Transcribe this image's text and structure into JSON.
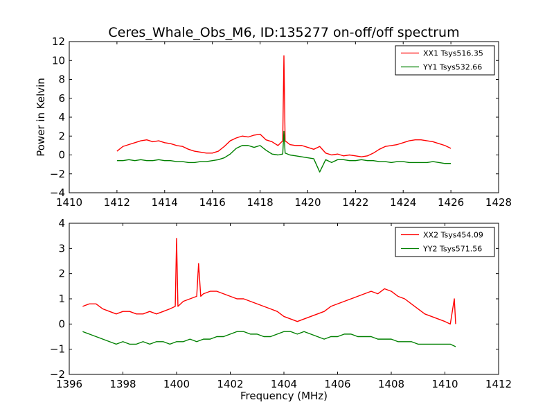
{
  "figure": {
    "title": "Ceres_Whale_Obs_M6, ID:135277 on-off/off spectrum",
    "xlabel": "Frequency (MHz)"
  },
  "chart_data": [
    {
      "type": "line",
      "title": "Ceres_Whale_Obs_M6, ID:135277 on-off/off spectrum",
      "xlabel": "",
      "ylabel": "Power in Kelvin",
      "xlim": [
        1410,
        1428
      ],
      "ylim": [
        -4,
        12
      ],
      "xticks": [
        "1410",
        "1412",
        "1414",
        "1416",
        "1418",
        "1420",
        "1422",
        "1424",
        "1426",
        "1428"
      ],
      "yticks": [
        "−4",
        "−2",
        "0",
        "2",
        "4",
        "6",
        "8",
        "10",
        "12"
      ],
      "legend_position": "top-right",
      "grid": false,
      "series": [
        {
          "name": "XX1 Tsys516.35",
          "color": "#ff0000",
          "x": [
            1412.0,
            1412.25,
            1412.5,
            1412.75,
            1413.0,
            1413.25,
            1413.5,
            1413.75,
            1414.0,
            1414.25,
            1414.5,
            1414.75,
            1415.0,
            1415.25,
            1415.5,
            1415.75,
            1416.0,
            1416.25,
            1416.5,
            1416.75,
            1417.0,
            1417.25,
            1417.5,
            1417.75,
            1418.0,
            1418.25,
            1418.5,
            1418.75,
            1418.95,
            1419.0,
            1419.05,
            1419.25,
            1419.5,
            1419.75,
            1420.0,
            1420.25,
            1420.5,
            1420.75,
            1421.0,
            1421.25,
            1421.5,
            1421.75,
            1422.0,
            1422.25,
            1422.5,
            1422.75,
            1423.0,
            1423.25,
            1423.5,
            1423.75,
            1424.0,
            1424.25,
            1424.5,
            1424.75,
            1425.0,
            1425.25,
            1425.5,
            1425.75,
            1426.0
          ],
          "y": [
            0.4,
            0.9,
            1.1,
            1.3,
            1.5,
            1.6,
            1.4,
            1.5,
            1.3,
            1.2,
            1.0,
            0.9,
            0.6,
            0.4,
            0.3,
            0.2,
            0.2,
            0.4,
            0.9,
            1.5,
            1.8,
            2.0,
            1.9,
            2.1,
            2.2,
            1.6,
            1.4,
            1.0,
            1.5,
            10.5,
            1.5,
            1.1,
            1.0,
            1.0,
            0.8,
            0.6,
            0.9,
            0.2,
            0.0,
            0.1,
            -0.1,
            0.0,
            -0.1,
            -0.2,
            -0.1,
            0.2,
            0.6,
            0.9,
            1.0,
            1.1,
            1.3,
            1.5,
            1.6,
            1.6,
            1.5,
            1.4,
            1.2,
            1.0,
            0.7
          ]
        },
        {
          "name": "YY1 Tsys532.66",
          "color": "#008000",
          "x": [
            1412.0,
            1412.25,
            1412.5,
            1412.75,
            1413.0,
            1413.25,
            1413.5,
            1413.75,
            1414.0,
            1414.25,
            1414.5,
            1414.75,
            1415.0,
            1415.25,
            1415.5,
            1415.75,
            1416.0,
            1416.25,
            1416.5,
            1416.75,
            1417.0,
            1417.25,
            1417.5,
            1417.75,
            1418.0,
            1418.25,
            1418.5,
            1418.75,
            1418.95,
            1419.0,
            1419.05,
            1419.25,
            1419.5,
            1419.75,
            1420.0,
            1420.25,
            1420.5,
            1420.75,
            1421.0,
            1421.25,
            1421.5,
            1421.75,
            1422.0,
            1422.25,
            1422.5,
            1422.75,
            1423.0,
            1423.25,
            1423.5,
            1423.75,
            1424.0,
            1424.25,
            1424.5,
            1424.75,
            1425.0,
            1425.25,
            1425.5,
            1425.75,
            1426.0
          ],
          "y": [
            -0.6,
            -0.6,
            -0.5,
            -0.6,
            -0.5,
            -0.6,
            -0.6,
            -0.5,
            -0.6,
            -0.6,
            -0.7,
            -0.7,
            -0.8,
            -0.8,
            -0.7,
            -0.7,
            -0.6,
            -0.5,
            -0.3,
            0.1,
            0.7,
            1.0,
            1.0,
            0.8,
            1.0,
            0.5,
            0.1,
            0.0,
            0.1,
            2.5,
            0.2,
            0.0,
            -0.1,
            -0.2,
            -0.3,
            -0.4,
            -1.8,
            -0.5,
            -0.8,
            -0.5,
            -0.5,
            -0.6,
            -0.6,
            -0.5,
            -0.6,
            -0.6,
            -0.7,
            -0.7,
            -0.8,
            -0.7,
            -0.7,
            -0.8,
            -0.8,
            -0.8,
            -0.8,
            -0.7,
            -0.8,
            -0.9,
            -0.9
          ]
        }
      ]
    },
    {
      "type": "line",
      "title": "",
      "xlabel": "Frequency (MHz)",
      "ylabel": "",
      "xlim": [
        1396,
        1412
      ],
      "ylim": [
        -2,
        4
      ],
      "xticks": [
        "1396",
        "1398",
        "1400",
        "1402",
        "1404",
        "1406",
        "1408",
        "1410",
        "1412"
      ],
      "yticks": [
        "−2",
        "−1",
        "0",
        "1",
        "2",
        "3",
        "4"
      ],
      "legend_position": "top-right",
      "grid": false,
      "series": [
        {
          "name": "XX2 Tsys454.09",
          "color": "#ff0000",
          "x": [
            1396.5,
            1396.75,
            1397.0,
            1397.25,
            1397.5,
            1397.75,
            1398.0,
            1398.25,
            1398.5,
            1398.75,
            1399.0,
            1399.25,
            1399.5,
            1399.75,
            1399.95,
            1400.0,
            1400.05,
            1400.25,
            1400.5,
            1400.75,
            1400.82,
            1400.9,
            1401.0,
            1401.25,
            1401.5,
            1401.75,
            1402.0,
            1402.25,
            1402.5,
            1402.75,
            1403.0,
            1403.25,
            1403.5,
            1403.75,
            1404.0,
            1404.25,
            1404.5,
            1404.75,
            1405.0,
            1405.25,
            1405.5,
            1405.75,
            1406.0,
            1406.25,
            1406.5,
            1406.75,
            1407.0,
            1407.25,
            1407.5,
            1407.75,
            1408.0,
            1408.25,
            1408.5,
            1408.75,
            1409.0,
            1409.25,
            1409.5,
            1409.75,
            1410.0,
            1410.2,
            1410.35,
            1410.4
          ],
          "y": [
            0.7,
            0.8,
            0.8,
            0.6,
            0.5,
            0.4,
            0.5,
            0.5,
            0.4,
            0.4,
            0.5,
            0.4,
            0.5,
            0.6,
            0.7,
            3.4,
            0.7,
            0.9,
            1.0,
            1.1,
            2.4,
            1.1,
            1.2,
            1.3,
            1.3,
            1.2,
            1.1,
            1.0,
            1.0,
            0.9,
            0.8,
            0.7,
            0.6,
            0.5,
            0.3,
            0.2,
            0.1,
            0.2,
            0.3,
            0.4,
            0.5,
            0.7,
            0.8,
            0.9,
            1.0,
            1.1,
            1.2,
            1.3,
            1.2,
            1.4,
            1.3,
            1.1,
            1.0,
            0.8,
            0.6,
            0.4,
            0.3,
            0.2,
            0.1,
            0.0,
            1.0,
            0.0
          ]
        },
        {
          "name": "YY2 Tsys571.56",
          "color": "#008000",
          "x": [
            1396.5,
            1396.75,
            1397.0,
            1397.25,
            1397.5,
            1397.75,
            1398.0,
            1398.25,
            1398.5,
            1398.75,
            1399.0,
            1399.25,
            1399.5,
            1399.75,
            1400.0,
            1400.25,
            1400.5,
            1400.75,
            1401.0,
            1401.25,
            1401.5,
            1401.75,
            1402.0,
            1402.25,
            1402.5,
            1402.75,
            1403.0,
            1403.25,
            1403.5,
            1403.75,
            1404.0,
            1404.25,
            1404.5,
            1404.75,
            1405.0,
            1405.25,
            1405.5,
            1405.75,
            1406.0,
            1406.25,
            1406.5,
            1406.75,
            1407.0,
            1407.25,
            1407.5,
            1407.75,
            1408.0,
            1408.25,
            1408.5,
            1408.75,
            1409.0,
            1409.25,
            1409.5,
            1409.75,
            1410.0,
            1410.2,
            1410.4
          ],
          "y": [
            -0.3,
            -0.4,
            -0.5,
            -0.6,
            -0.7,
            -0.8,
            -0.7,
            -0.8,
            -0.8,
            -0.7,
            -0.8,
            -0.7,
            -0.7,
            -0.8,
            -0.7,
            -0.7,
            -0.6,
            -0.7,
            -0.6,
            -0.6,
            -0.5,
            -0.5,
            -0.4,
            -0.3,
            -0.3,
            -0.4,
            -0.4,
            -0.5,
            -0.5,
            -0.4,
            -0.3,
            -0.3,
            -0.4,
            -0.3,
            -0.4,
            -0.5,
            -0.6,
            -0.5,
            -0.5,
            -0.4,
            -0.4,
            -0.5,
            -0.5,
            -0.5,
            -0.6,
            -0.6,
            -0.6,
            -0.7,
            -0.7,
            -0.7,
            -0.8,
            -0.8,
            -0.8,
            -0.8,
            -0.8,
            -0.8,
            -0.9
          ]
        }
      ]
    }
  ]
}
